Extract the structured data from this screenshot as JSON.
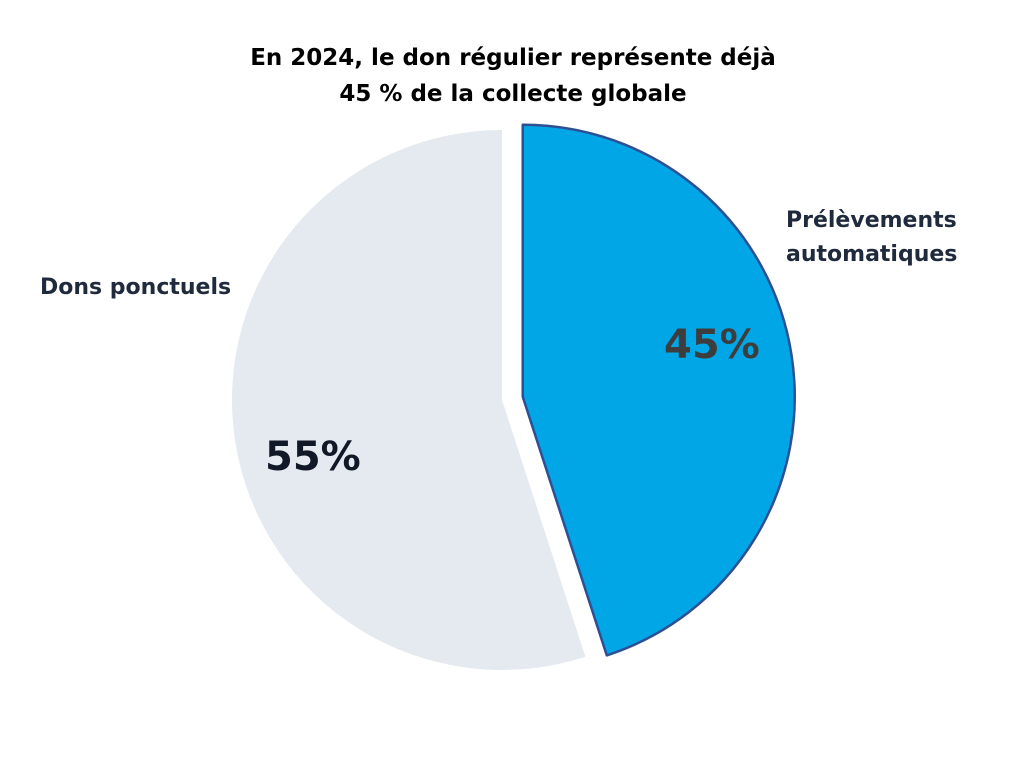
{
  "chart_data": {
    "type": "pie",
    "title_lines": [
      "En 2024, le don régulier représente déjà",
      "45 % de la collecte globale"
    ],
    "slices": [
      {
        "label_lines": [
          "Prélèvements",
          "automatiques"
        ],
        "value": 45,
        "value_label": "45%",
        "color": "#00a6e6",
        "stroke": "#2e4f94",
        "exploded": true,
        "text_color": "#3d3d3d"
      },
      {
        "label_lines": [
          "Dons ponctuels"
        ],
        "value": 55,
        "value_label": "55%",
        "color": "#e5e9f0",
        "stroke": "none",
        "exploded": false,
        "text_color": "#111827"
      }
    ],
    "start_angle_deg": 0,
    "direction": "clockwise",
    "legend": "none"
  }
}
